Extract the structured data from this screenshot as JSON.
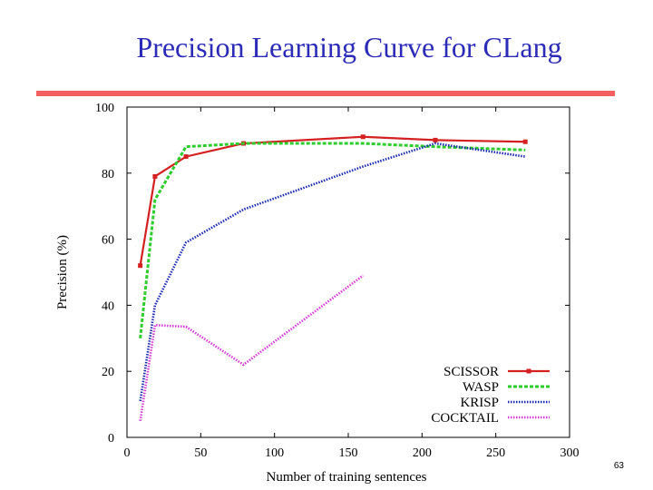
{
  "slide": {
    "title": "Precision Learning Curve for CLang",
    "page_number": "63"
  },
  "colors": {
    "title": "#2b2bb8",
    "rule": "#f26060"
  },
  "chart_data": {
    "type": "line",
    "title": "",
    "xlabel": "Number of training sentences",
    "ylabel": "Precision (%)",
    "xlim": [
      0,
      300
    ],
    "ylim": [
      0,
      100
    ],
    "xticks": [
      0,
      50,
      100,
      150,
      200,
      250,
      300
    ],
    "yticks": [
      0,
      20,
      40,
      60,
      80,
      100
    ],
    "grid": false,
    "legend": "bottom-right",
    "series": [
      {
        "name": "SCISSOR",
        "color": "#d42020",
        "style": "solid-markers",
        "x": [
          9,
          19,
          40,
          79,
          160,
          209,
          270
        ],
        "y": [
          52,
          79,
          85,
          89,
          91,
          90,
          89.5
        ]
      },
      {
        "name": "WASP",
        "color": "#2ecc2e",
        "style": "dashed",
        "x": [
          9,
          19,
          40,
          79,
          160,
          209,
          270
        ],
        "y": [
          30,
          72,
          88,
          89,
          89,
          88,
          87
        ]
      },
      {
        "name": "KRISP",
        "color": "#1a2ab0",
        "style": "dotted",
        "x": [
          9,
          19,
          40,
          79,
          160,
          209,
          270
        ],
        "y": [
          11,
          40,
          59,
          69,
          82,
          89,
          85
        ]
      },
      {
        "name": "COCKTAIL",
        "color": "#d43cd4",
        "style": "dotted",
        "x": [
          9,
          19,
          40,
          79,
          160
        ],
        "y": [
          5,
          34,
          33.5,
          22,
          49
        ]
      }
    ]
  }
}
